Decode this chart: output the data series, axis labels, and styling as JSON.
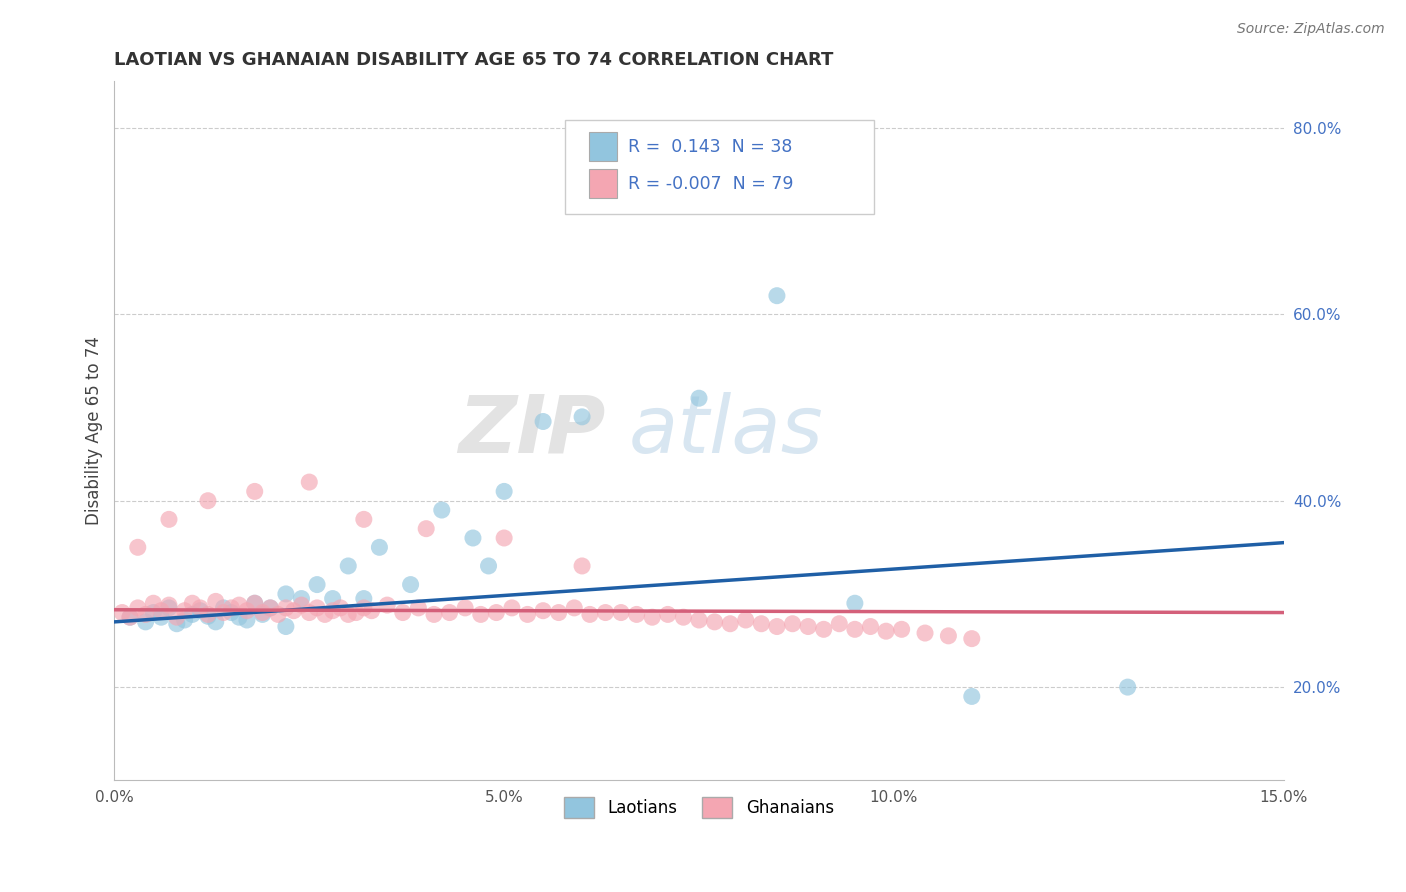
{
  "title": "LAOTIAN VS GHANAIAN DISABILITY AGE 65 TO 74 CORRELATION CHART",
  "source_text": "Source: ZipAtlas.com",
  "ylabel": "Disability Age 65 to 74",
  "xlim": [
    0.0,
    0.15
  ],
  "ylim": [
    0.1,
    0.85
  ],
  "xticks": [
    0.0,
    0.05,
    0.1,
    0.15
  ],
  "xtick_labels": [
    "0.0%",
    "5.0%",
    "10.0%",
    "15.0%"
  ],
  "yticks": [
    0.2,
    0.4,
    0.6,
    0.8
  ],
  "ytick_labels": [
    "20.0%",
    "40.0%",
    "60.0%",
    "80.0%"
  ],
  "blue_color": "#92c5de",
  "pink_color": "#f4a6b2",
  "blue_line_color": "#1f5fa6",
  "pink_line_color": "#d4607a",
  "legend_r_blue": " 0.143",
  "legend_n_blue": "38",
  "legend_r_pink": "-0.007",
  "legend_n_pink": "79",
  "label_blue": "Laotians",
  "label_pink": "Ghanaians",
  "title_fontsize": 13,
  "watermark_zip": "ZIP",
  "watermark_atlas": "atlas",
  "blue_scatter_x": [
    0.002,
    0.004,
    0.005,
    0.006,
    0.007,
    0.008,
    0.009,
    0.01,
    0.011,
    0.012,
    0.013,
    0.014,
    0.015,
    0.016,
    0.017,
    0.018,
    0.019,
    0.02,
    0.022,
    0.024,
    0.026,
    0.028,
    0.03,
    0.032,
    0.034,
    0.038,
    0.042,
    0.046,
    0.05,
    0.055,
    0.06,
    0.075,
    0.085,
    0.095,
    0.11,
    0.13,
    0.022,
    0.048
  ],
  "blue_scatter_y": [
    0.275,
    0.27,
    0.28,
    0.275,
    0.285,
    0.268,
    0.272,
    0.278,
    0.282,
    0.276,
    0.27,
    0.285,
    0.28,
    0.275,
    0.272,
    0.29,
    0.278,
    0.285,
    0.3,
    0.295,
    0.31,
    0.295,
    0.33,
    0.295,
    0.35,
    0.31,
    0.39,
    0.36,
    0.41,
    0.485,
    0.49,
    0.51,
    0.62,
    0.29,
    0.19,
    0.2,
    0.265,
    0.33
  ],
  "pink_scatter_x": [
    0.001,
    0.002,
    0.003,
    0.004,
    0.005,
    0.006,
    0.007,
    0.008,
    0.009,
    0.01,
    0.011,
    0.012,
    0.013,
    0.014,
    0.015,
    0.016,
    0.017,
    0.018,
    0.019,
    0.02,
    0.021,
    0.022,
    0.023,
    0.024,
    0.025,
    0.026,
    0.027,
    0.028,
    0.029,
    0.03,
    0.031,
    0.032,
    0.033,
    0.035,
    0.037,
    0.039,
    0.041,
    0.043,
    0.045,
    0.047,
    0.049,
    0.051,
    0.053,
    0.055,
    0.057,
    0.059,
    0.061,
    0.063,
    0.065,
    0.067,
    0.069,
    0.071,
    0.073,
    0.075,
    0.077,
    0.079,
    0.081,
    0.083,
    0.085,
    0.087,
    0.089,
    0.091,
    0.093,
    0.095,
    0.097,
    0.099,
    0.101,
    0.104,
    0.107,
    0.11,
    0.003,
    0.007,
    0.012,
    0.018,
    0.025,
    0.032,
    0.04,
    0.05,
    0.06
  ],
  "pink_scatter_y": [
    0.28,
    0.275,
    0.285,
    0.278,
    0.29,
    0.282,
    0.288,
    0.275,
    0.282,
    0.29,
    0.285,
    0.278,
    0.292,
    0.28,
    0.285,
    0.288,
    0.282,
    0.29,
    0.28,
    0.285,
    0.278,
    0.285,
    0.282,
    0.288,
    0.28,
    0.285,
    0.278,
    0.282,
    0.285,
    0.278,
    0.28,
    0.285,
    0.282,
    0.288,
    0.28,
    0.285,
    0.278,
    0.28,
    0.285,
    0.278,
    0.28,
    0.285,
    0.278,
    0.282,
    0.28,
    0.285,
    0.278,
    0.28,
    0.28,
    0.278,
    0.275,
    0.278,
    0.275,
    0.272,
    0.27,
    0.268,
    0.272,
    0.268,
    0.265,
    0.268,
    0.265,
    0.262,
    0.268,
    0.262,
    0.265,
    0.26,
    0.262,
    0.258,
    0.255,
    0.252,
    0.35,
    0.38,
    0.4,
    0.41,
    0.42,
    0.38,
    0.37,
    0.36,
    0.33
  ],
  "blue_trend": [
    0.27,
    0.355
  ],
  "pink_trend": [
    0.283,
    0.28
  ]
}
